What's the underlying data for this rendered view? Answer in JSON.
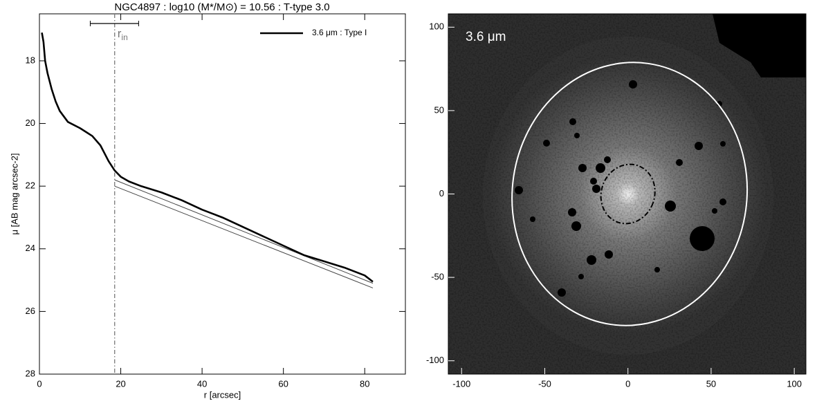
{
  "chart_data": [
    {
      "type": "line",
      "title": "NGC4897 : log10 (M*/M⊙) = 10.56 : T-type 3.0",
      "xlabel": "r [arcsec]",
      "ylabel": "μ [AB mag arcsec-2]",
      "xlim": [
        0,
        90
      ],
      "ylim": [
        28,
        16.5
      ],
      "xticks": [
        0,
        20,
        40,
        60,
        80
      ],
      "yticks": [
        18,
        20,
        22,
        24,
        26,
        28
      ],
      "legend": "upper right",
      "series": [
        {
          "name": "3.6 μm : Type I",
          "color": "#000000",
          "x": [
            0.6,
            1,
            1.4,
            2,
            3,
            4,
            5,
            7,
            10,
            13,
            15,
            17,
            18.5,
            20,
            22,
            25,
            30,
            35,
            40,
            43,
            45,
            50,
            55,
            60,
            65,
            70,
            75,
            80,
            82
          ],
          "values": [
            17.1,
            17.4,
            18.0,
            18.4,
            18.9,
            19.3,
            19.6,
            19.95,
            20.15,
            20.4,
            20.7,
            21.2,
            21.5,
            21.7,
            21.85,
            22.0,
            22.2,
            22.45,
            22.75,
            22.9,
            23.0,
            23.3,
            23.6,
            23.9,
            24.2,
            24.4,
            24.6,
            24.85,
            25.05
          ]
        }
      ],
      "fits": [
        {
          "color": "#444444",
          "x": [
            18.5,
            82
          ],
          "values": [
            21.8,
            25.1
          ]
        },
        {
          "color": "#444444",
          "x": [
            18.5,
            82
          ],
          "values": [
            22.0,
            25.25
          ]
        }
      ],
      "rin": {
        "x": 18.5,
        "label": "r",
        "sub": "in",
        "range": [
          12.5,
          24.4
        ],
        "color": "#777777"
      }
    },
    {
      "type": "image",
      "label": "3.6 μm",
      "xlim": [
        -108,
        107
      ],
      "ylim": [
        -108,
        108
      ],
      "xticks": [
        -100,
        -50,
        0,
        50,
        100
      ],
      "yticks": [
        -100,
        -50,
        0,
        50,
        100
      ],
      "ellipses": [
        {
          "cx": 1,
          "cy": 0,
          "a": 70.5,
          "b": 79,
          "angle": 8,
          "color": "#ffffff",
          "dash": false
        },
        {
          "cx": 0,
          "cy": 0,
          "a": 16,
          "b": 18,
          "angle": 20,
          "color": "#000000",
          "dash": true
        }
      ]
    }
  ]
}
